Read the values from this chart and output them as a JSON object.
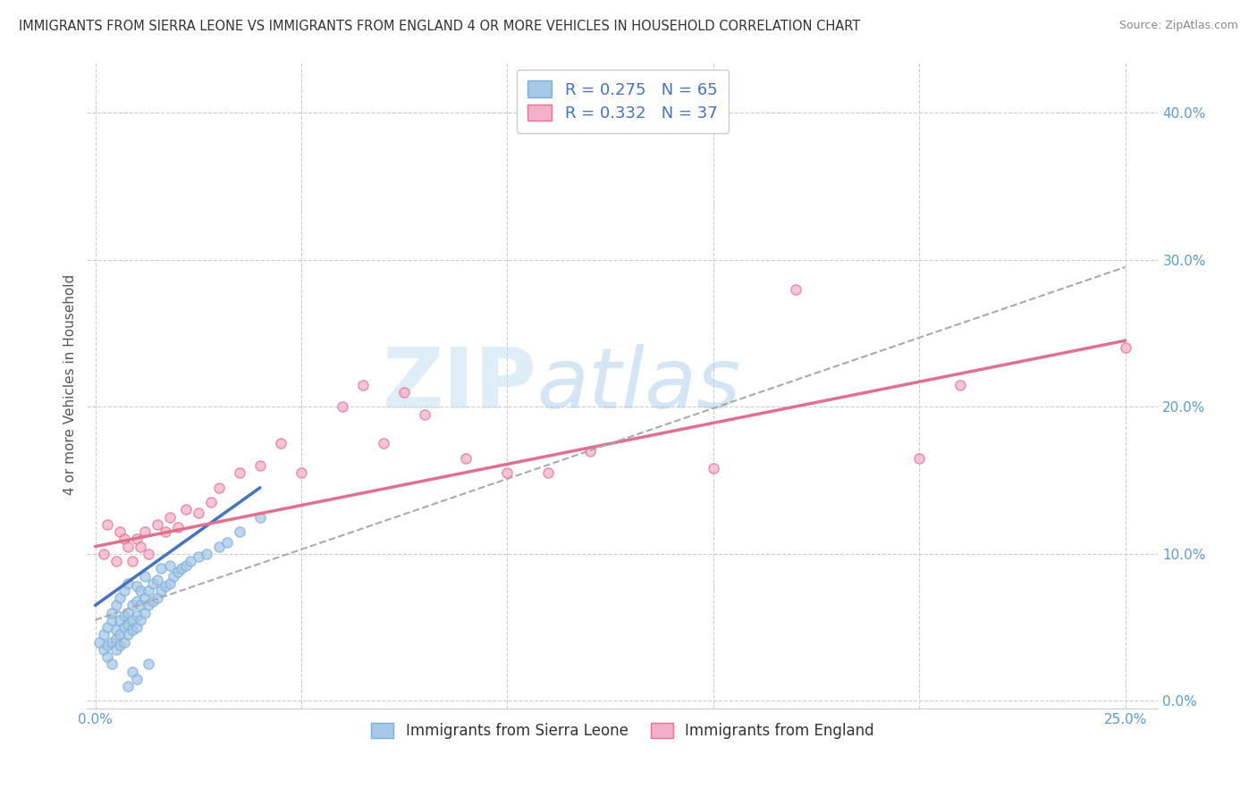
{
  "title": "IMMIGRANTS FROM SIERRA LEONE VS IMMIGRANTS FROM ENGLAND 4 OR MORE VEHICLES IN HOUSEHOLD CORRELATION CHART",
  "source": "Source: ZipAtlas.com",
  "ylabel": "4 or more Vehicles in Household",
  "legend_label_1": "Immigrants from Sierra Leone",
  "legend_label_2": "Immigrants from England",
  "R1": 0.275,
  "N1": 65,
  "R2": 0.332,
  "N2": 37,
  "xlim": [
    -0.002,
    0.258
  ],
  "ylim": [
    -0.005,
    0.435
  ],
  "yticks": [
    0.0,
    0.1,
    0.2,
    0.3,
    0.4
  ],
  "xtick_positions": [
    0.0,
    0.05,
    0.1,
    0.15,
    0.2,
    0.25
  ],
  "xtick_labels_show": [
    "0.0%",
    "",
    "",
    "",
    "",
    "25.0%"
  ],
  "color_sierra": "#a8c8e8",
  "color_england": "#f4b0c8",
  "color_sierra_edge": "#7ab0d8",
  "color_england_edge": "#e87090",
  "color_sierra_line": "#4472c4",
  "color_england_line": "#e07090",
  "color_dash": "#aaaaaa",
  "watermark_zip": "ZIP",
  "watermark_atlas": "atlas",
  "background_color": "#ffffff",
  "grid_color": "#cccccc",
  "scatter_sierra_x": [
    0.001,
    0.002,
    0.002,
    0.003,
    0.003,
    0.003,
    0.004,
    0.004,
    0.004,
    0.004,
    0.005,
    0.005,
    0.005,
    0.005,
    0.006,
    0.006,
    0.006,
    0.006,
    0.007,
    0.007,
    0.007,
    0.007,
    0.008,
    0.008,
    0.008,
    0.008,
    0.009,
    0.009,
    0.009,
    0.01,
    0.01,
    0.01,
    0.01,
    0.011,
    0.011,
    0.011,
    0.012,
    0.012,
    0.012,
    0.013,
    0.013,
    0.014,
    0.014,
    0.015,
    0.015,
    0.016,
    0.016,
    0.017,
    0.018,
    0.018,
    0.019,
    0.02,
    0.021,
    0.022,
    0.023,
    0.025,
    0.027,
    0.03,
    0.032,
    0.035,
    0.04,
    0.013,
    0.009,
    0.01,
    0.008
  ],
  "scatter_sierra_y": [
    0.04,
    0.035,
    0.045,
    0.03,
    0.038,
    0.05,
    0.025,
    0.04,
    0.055,
    0.06,
    0.035,
    0.042,
    0.048,
    0.065,
    0.038,
    0.045,
    0.055,
    0.07,
    0.04,
    0.05,
    0.058,
    0.075,
    0.045,
    0.052,
    0.06,
    0.08,
    0.048,
    0.055,
    0.065,
    0.05,
    0.058,
    0.068,
    0.078,
    0.055,
    0.065,
    0.075,
    0.06,
    0.07,
    0.085,
    0.065,
    0.075,
    0.068,
    0.08,
    0.07,
    0.082,
    0.075,
    0.09,
    0.078,
    0.08,
    0.092,
    0.085,
    0.088,
    0.09,
    0.092,
    0.095,
    0.098,
    0.1,
    0.105,
    0.108,
    0.115,
    0.125,
    0.025,
    0.02,
    0.015,
    0.01
  ],
  "scatter_england_x": [
    0.002,
    0.003,
    0.005,
    0.006,
    0.007,
    0.008,
    0.009,
    0.01,
    0.011,
    0.012,
    0.013,
    0.015,
    0.017,
    0.018,
    0.02,
    0.022,
    0.025,
    0.028,
    0.03,
    0.035,
    0.04,
    0.045,
    0.05,
    0.06,
    0.065,
    0.07,
    0.075,
    0.08,
    0.09,
    0.1,
    0.11,
    0.12,
    0.15,
    0.17,
    0.2,
    0.21,
    0.25
  ],
  "scatter_england_y": [
    0.1,
    0.12,
    0.095,
    0.115,
    0.11,
    0.105,
    0.095,
    0.11,
    0.105,
    0.115,
    0.1,
    0.12,
    0.115,
    0.125,
    0.118,
    0.13,
    0.128,
    0.135,
    0.145,
    0.155,
    0.16,
    0.175,
    0.155,
    0.2,
    0.215,
    0.175,
    0.21,
    0.195,
    0.165,
    0.155,
    0.155,
    0.17,
    0.158,
    0.28,
    0.165,
    0.215,
    0.24
  ],
  "sierra_line_x0": 0.0,
  "sierra_line_y0": 0.065,
  "sierra_line_x1": 0.04,
  "sierra_line_y1": 0.145,
  "england_line_x0": 0.0,
  "england_line_y0": 0.105,
  "england_line_x1": 0.25,
  "england_line_y1": 0.245,
  "dash_line_x0": 0.0,
  "dash_line_y0": 0.055,
  "dash_line_x1": 0.25,
  "dash_line_y1": 0.295
}
